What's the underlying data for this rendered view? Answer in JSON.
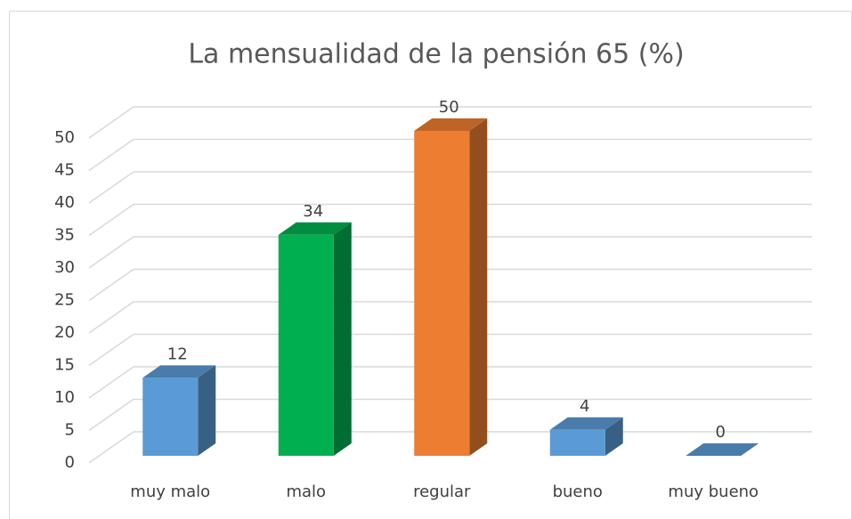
{
  "chart_data": {
    "type": "bar3d",
    "title": "La mensualidad de la pensión 65 (%)",
    "categories": [
      "muy malo",
      "malo",
      "regular",
      "bueno",
      "muy bueno"
    ],
    "values": [
      12,
      34,
      50,
      4,
      0
    ],
    "colors": [
      "#5b9bd5",
      "#00b050",
      "#ed7d31",
      "#5b9bd5",
      "#5b9bd5"
    ],
    "ylim": [
      0,
      50
    ],
    "yticks": [
      0,
      5,
      10,
      15,
      20,
      25,
      30,
      35,
      40,
      45,
      50
    ],
    "grid": true
  }
}
